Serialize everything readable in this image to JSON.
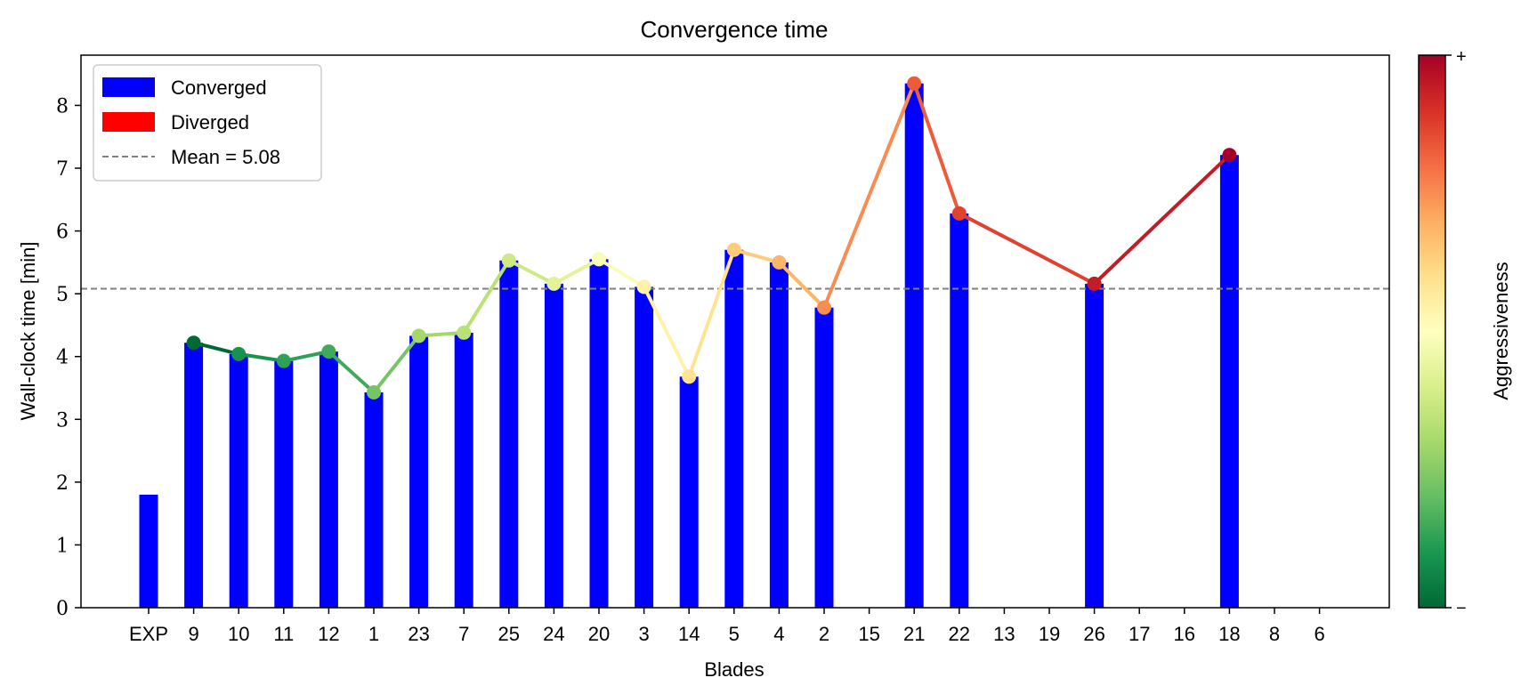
{
  "chart_data": {
    "type": "bar",
    "title": "Convergence time",
    "xlabel": "Blades",
    "ylabel": "Wall-clock time [min]",
    "ylim": [
      0,
      8.8
    ],
    "yticks": [
      "0",
      "1",
      "2",
      "3",
      "4",
      "5",
      "6",
      "7",
      "8"
    ],
    "categories": [
      "EXP",
      "9",
      "10",
      "11",
      "12",
      "1",
      "23",
      "7",
      "25",
      "24",
      "20",
      "3",
      "14",
      "5",
      "4",
      "2",
      "15",
      "21",
      "22",
      "13",
      "19",
      "26",
      "17",
      "16",
      "18",
      "8",
      "6"
    ],
    "values": [
      1.8,
      4.22,
      4.04,
      3.93,
      4.08,
      3.43,
      4.33,
      4.38,
      5.53,
      5.16,
      5.55,
      5.11,
      3.68,
      5.7,
      5.5,
      4.78,
      null,
      8.35,
      6.28,
      null,
      null,
      5.16,
      null,
      null,
      7.21,
      null,
      null
    ],
    "status": [
      "converged",
      "converged",
      "converged",
      "converged",
      "converged",
      "converged",
      "converged",
      "converged",
      "converged",
      "converged",
      "converged",
      "converged",
      "converged",
      "converged",
      "converged",
      "converged",
      null,
      "converged",
      "converged",
      null,
      null,
      "converged",
      null,
      null,
      "converged",
      null,
      null
    ],
    "aggressiveness_line": {
      "points": [
        {
          "category": "9",
          "value": 4.22,
          "color": "#006837"
        },
        {
          "category": "10",
          "value": 4.04,
          "color": "#17934d"
        },
        {
          "category": "11",
          "value": 3.93,
          "color": "#2da155"
        },
        {
          "category": "12",
          "value": 4.08,
          "color": "#3faa59"
        },
        {
          "category": "1",
          "value": 3.43,
          "color": "#75c465"
        },
        {
          "category": "23",
          "value": 4.33,
          "color": "#a5d86a"
        },
        {
          "category": "7",
          "value": 4.38,
          "color": "#b9e176"
        },
        {
          "category": "25",
          "value": 5.53,
          "color": "#cdea83"
        },
        {
          "category": "24",
          "value": 5.16,
          "color": "#e3f399"
        },
        {
          "category": "20",
          "value": 5.55,
          "color": "#fafdb8"
        },
        {
          "category": "3",
          "value": 5.11,
          "color": "#fff1a8"
        },
        {
          "category": "14",
          "value": 3.68,
          "color": "#fee491"
        },
        {
          "category": "5",
          "value": 5.7,
          "color": "#fdcc7a"
        },
        {
          "category": "4",
          "value": 5.5,
          "color": "#fdb567"
        },
        {
          "category": "2",
          "value": 4.78,
          "color": "#f88c51"
        },
        {
          "category": "21",
          "value": 8.35,
          "color": "#ec5c3b"
        },
        {
          "category": "22",
          "value": 6.28,
          "color": "#e0422f"
        },
        {
          "category": "26",
          "value": 5.16,
          "color": "#c21c27"
        },
        {
          "category": "18",
          "value": 7.21,
          "color": "#a50026"
        }
      ]
    },
    "mean": 5.08,
    "legend": {
      "position": "top-left",
      "entries": [
        {
          "label": "Converged",
          "color": "#0000ff",
          "kind": "patch"
        },
        {
          "label": "Diverged",
          "color": "#ff0000",
          "kind": "patch"
        },
        {
          "label": "Mean = 5.08",
          "color": "#808080",
          "kind": "dashed-line"
        }
      ]
    },
    "colorbar": {
      "label": "Aggressiveness",
      "top_tick": "+",
      "bottom_tick": "−",
      "colormap": "RdYlGn_r",
      "stops": [
        "#006837",
        "#1a9850",
        "#66bd63",
        "#a6d96a",
        "#d9ef8b",
        "#ffffbf",
        "#fee08b",
        "#fdae61",
        "#f46d43",
        "#d73027",
        "#a50026"
      ]
    },
    "grid": false
  }
}
